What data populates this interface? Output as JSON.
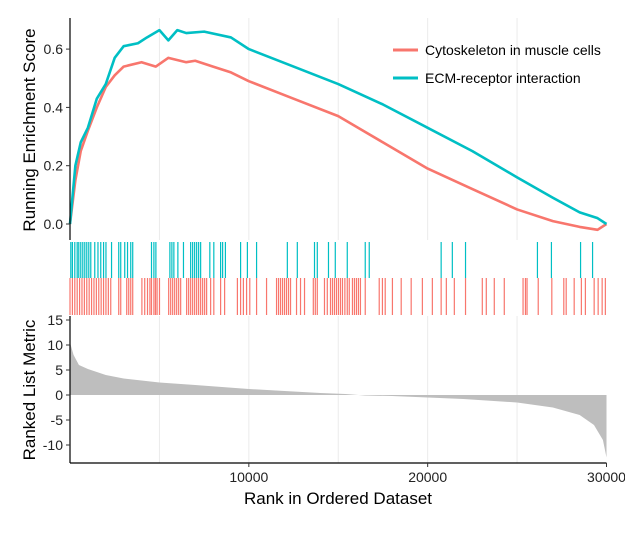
{
  "chart_data": {
    "type": "line",
    "xlabel": "Rank in Ordered Dataset",
    "xlim": [
      0,
      30000
    ],
    "xticks": [
      "10000",
      "20000",
      "30000"
    ],
    "grid": true,
    "legend_placement": "top-right",
    "es_panel": {
      "ylabel": "Running Enrichment Score",
      "ylim": [
        -0.03,
        0.7
      ],
      "yticks": [
        "0.0",
        "0.2",
        "0.4",
        "0.6"
      ],
      "series": [
        {
          "name": "Cytoskeleton in muscle cells",
          "color": "#F8766D",
          "x": [
            0,
            300,
            600,
            1000,
            1500,
            2000,
            2500,
            3000,
            4000,
            4800,
            5500,
            6500,
            7000,
            8000,
            9000,
            10000,
            12500,
            15000,
            17500,
            20000,
            22500,
            25000,
            27000,
            28500,
            29500,
            30000
          ],
          "y": [
            0,
            0.15,
            0.25,
            0.32,
            0.4,
            0.47,
            0.51,
            0.54,
            0.555,
            0.54,
            0.57,
            0.555,
            0.56,
            0.54,
            0.52,
            0.49,
            0.43,
            0.37,
            0.28,
            0.19,
            0.12,
            0.05,
            0.01,
            -0.01,
            -0.02,
            0.0
          ]
        },
        {
          "name": "ECM-receptor interaction",
          "color": "#00BFC4",
          "x": [
            0,
            300,
            600,
            1000,
            1500,
            2000,
            2500,
            3000,
            3800,
            4300,
            5000,
            5500,
            6000,
            6500,
            7500,
            9000,
            10000,
            12500,
            15000,
            17500,
            20000,
            22500,
            25000,
            27000,
            28500,
            29500,
            30000
          ],
          "y": [
            0,
            0.2,
            0.28,
            0.33,
            0.43,
            0.48,
            0.57,
            0.61,
            0.62,
            0.64,
            0.665,
            0.63,
            0.665,
            0.655,
            0.66,
            0.64,
            0.6,
            0.54,
            0.48,
            0.41,
            0.33,
            0.25,
            0.16,
            0.09,
            0.04,
            0.02,
            0.0
          ]
        }
      ]
    },
    "hits": {
      "ECM-receptor interaction": [
        45,
        134,
        268,
        402,
        491,
        603,
        715,
        827,
        938,
        1050,
        1162,
        1385,
        1564,
        1720,
        1877,
        2011,
        2323,
        2725,
        2837,
        3061,
        3217,
        3396,
        3507,
        4557,
        4691,
        4803,
        5585,
        5697,
        5808,
        6032,
        6345,
        6747,
        6858,
        6970,
        7082,
        7193,
        7305,
        7819,
        8042,
        8422,
        8534,
        8690,
        9539,
        9919,
        10433,
        12153,
        12711,
        13672,
        13828,
        14454,
        14834,
        15504,
        16509,
        16733,
        20754,
        21379,
        22117,
        26138,
        26920,
        28550,
        29221
      ],
      "Cytoskeleton in muscle cells": [
        0,
        134,
        268,
        402,
        536,
        670,
        804,
        938,
        1072,
        1206,
        1340,
        1474,
        1608,
        1742,
        1876,
        2010,
        2144,
        2278,
        2725,
        2837,
        3172,
        3284,
        3396,
        3507,
        4021,
        4178,
        4334,
        4468,
        4557,
        4691,
        4781,
        4870,
        5004,
        5518,
        5630,
        5741,
        5853,
        5965,
        6076,
        6188,
        6523,
        6635,
        6747,
        6858,
        6970,
        7082,
        7193,
        7305,
        7417,
        7529,
        7640,
        7864,
        8042,
        8422,
        8646,
        9360,
        9539,
        9696,
        9874,
        10053,
        10433,
        10991,
        11550,
        11662,
        11773,
        11885,
        11997,
        12108,
        12220,
        12332,
        12667,
        12890,
        13114,
        13605,
        13717,
        13828,
        14230,
        14387,
        14566,
        14677,
        14789,
        14901,
        15012,
        15124,
        15236,
        15370,
        15504,
        15616,
        15794,
        15906,
        16018,
        16129,
        16241,
        16509,
        17291,
        17470,
        17626,
        18029,
        18520,
        19078,
        19704,
        20262,
        20754,
        21044,
        21491,
        22117,
        23055,
        23278,
        23725,
        24284,
        25334,
        25468,
        25557,
        26182,
        26942,
        27612,
        27746,
        28193,
        28595,
        28819,
        29310,
        29533,
        29757,
        29936
      ]
    },
    "metric_panel": {
      "ylabel": "Ranked List Metric",
      "ylim": [
        -13.5,
        15
      ],
      "yticks": [
        "15",
        "10",
        "5",
        "0",
        "-5",
        "-10"
      ],
      "color": "#BEBEBE",
      "x": [
        0,
        200,
        500,
        1000,
        2000,
        3000,
        5000,
        7000,
        10000,
        12000,
        14000,
        15400,
        16500,
        18000,
        20000,
        22000,
        25000,
        27000,
        28500,
        29300,
        29800,
        30000
      ],
      "y": [
        10.5,
        8,
        6,
        5.2,
        4,
        3.3,
        2.5,
        2,
        1.2,
        0.8,
        0.4,
        0.2,
        -0.1,
        -0.2,
        -0.5,
        -0.8,
        -1.5,
        -2.5,
        -4,
        -6,
        -9,
        -12.5
      ]
    }
  }
}
